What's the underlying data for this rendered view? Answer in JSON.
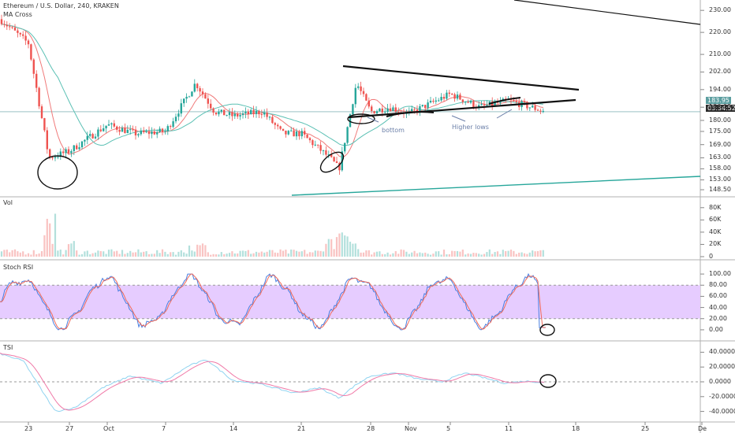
{
  "header": {
    "symbol_line": "Ethereum / U.S. Dollar, 240, KRAKEN",
    "indicator_line": "MA Cross"
  },
  "panes": {
    "volume_label": "Vol",
    "stoch_label": "Stoch RSI",
    "tsi_label": "TSI"
  },
  "price_axis": {
    "ticks": [
      "230.00",
      "220.00",
      "210.00",
      "202.00",
      "194.00",
      "186.00",
      "180.00",
      "175.00",
      "169.00",
      "163.00",
      "158.00",
      "153.00",
      "148.50"
    ],
    "current_price": "183.95",
    "countdown": "03:34:52",
    "colors": {
      "price_tag": "#5b9ea0",
      "countdown_tag": "#2b2b2b"
    }
  },
  "volume_axis": {
    "ticks": [
      "80K",
      "60K",
      "40K",
      "20K",
      "0"
    ]
  },
  "stoch_axis": {
    "ticks": [
      "100.00",
      "80.00",
      "60.00",
      "40.00",
      "20.00",
      "0.00"
    ]
  },
  "tsi_axis": {
    "ticks": [
      "40.0000",
      "20.0000",
      "0.0000",
      "-20.0000",
      "-40.0000"
    ]
  },
  "time_axis": {
    "ticks": [
      "23",
      "27",
      "Oct",
      "7",
      "14",
      "21",
      "28",
      "Nov",
      "5",
      "11",
      "18",
      "25",
      "De"
    ]
  },
  "annotations": {
    "bottom_label": "bottom",
    "higher_lows_label": "Higher lows"
  },
  "colors": {
    "up_candle": "#26a69a",
    "down_candle": "#ef5350",
    "ma_fast": "#f07a7a",
    "ma_slow": "#5bc0b4",
    "stoch_band": "#e6ccff",
    "stoch_k": "#4a7fe0",
    "stoch_d": "#f06a5a",
    "tsi_line": "#8fd3f0",
    "tsi_signal": "#f07aa8",
    "trendline_teal": "#26a69a"
  },
  "chart_data": [
    {
      "type": "candlestick",
      "title": "Ethereum / U.S. Dollar, 240, KRAKEN",
      "x": [
        "23",
        "27",
        "Oct",
        "7",
        "14",
        "21",
        "28",
        "Nov",
        "5",
        "11",
        "18",
        "25",
        "De"
      ],
      "close_path": [
        {
          "x": "21 Sep",
          "y": 226
        },
        {
          "x": "23",
          "y": 215
        },
        {
          "x": "25",
          "y": 163
        },
        {
          "x": "27",
          "y": 166
        },
        {
          "x": "Oct",
          "y": 178
        },
        {
          "x": "4",
          "y": 174
        },
        {
          "x": "7",
          "y": 175
        },
        {
          "x": "10",
          "y": 197
        },
        {
          "x": "12",
          "y": 184
        },
        {
          "x": "14",
          "y": 182
        },
        {
          "x": "17",
          "y": 184
        },
        {
          "x": "19",
          "y": 174
        },
        {
          "x": "21",
          "y": 174
        },
        {
          "x": "24",
          "y": 163
        },
        {
          "x": "25",
          "y": 158
        },
        {
          "x": "27",
          "y": 197
        },
        {
          "x": "28",
          "y": 184
        },
        {
          "x": "30",
          "y": 186
        },
        {
          "x": "Nov",
          "y": 183
        },
        {
          "x": "5",
          "y": 192
        },
        {
          "x": "8",
          "y": 186
        },
        {
          "x": "11",
          "y": 189
        },
        {
          "x": "14",
          "y": 183.95
        }
      ],
      "last": 183.95,
      "ylim": [
        146,
        234
      ]
    },
    {
      "type": "bar",
      "name": "Vol",
      "ylim": [
        0,
        90000
      ]
    },
    {
      "type": "line",
      "name": "Stoch RSI",
      "bands": [
        20,
        80
      ],
      "ylim": [
        -10,
        110
      ]
    },
    {
      "type": "line",
      "name": "TSI",
      "ylim": [
        -50,
        50
      ]
    }
  ]
}
